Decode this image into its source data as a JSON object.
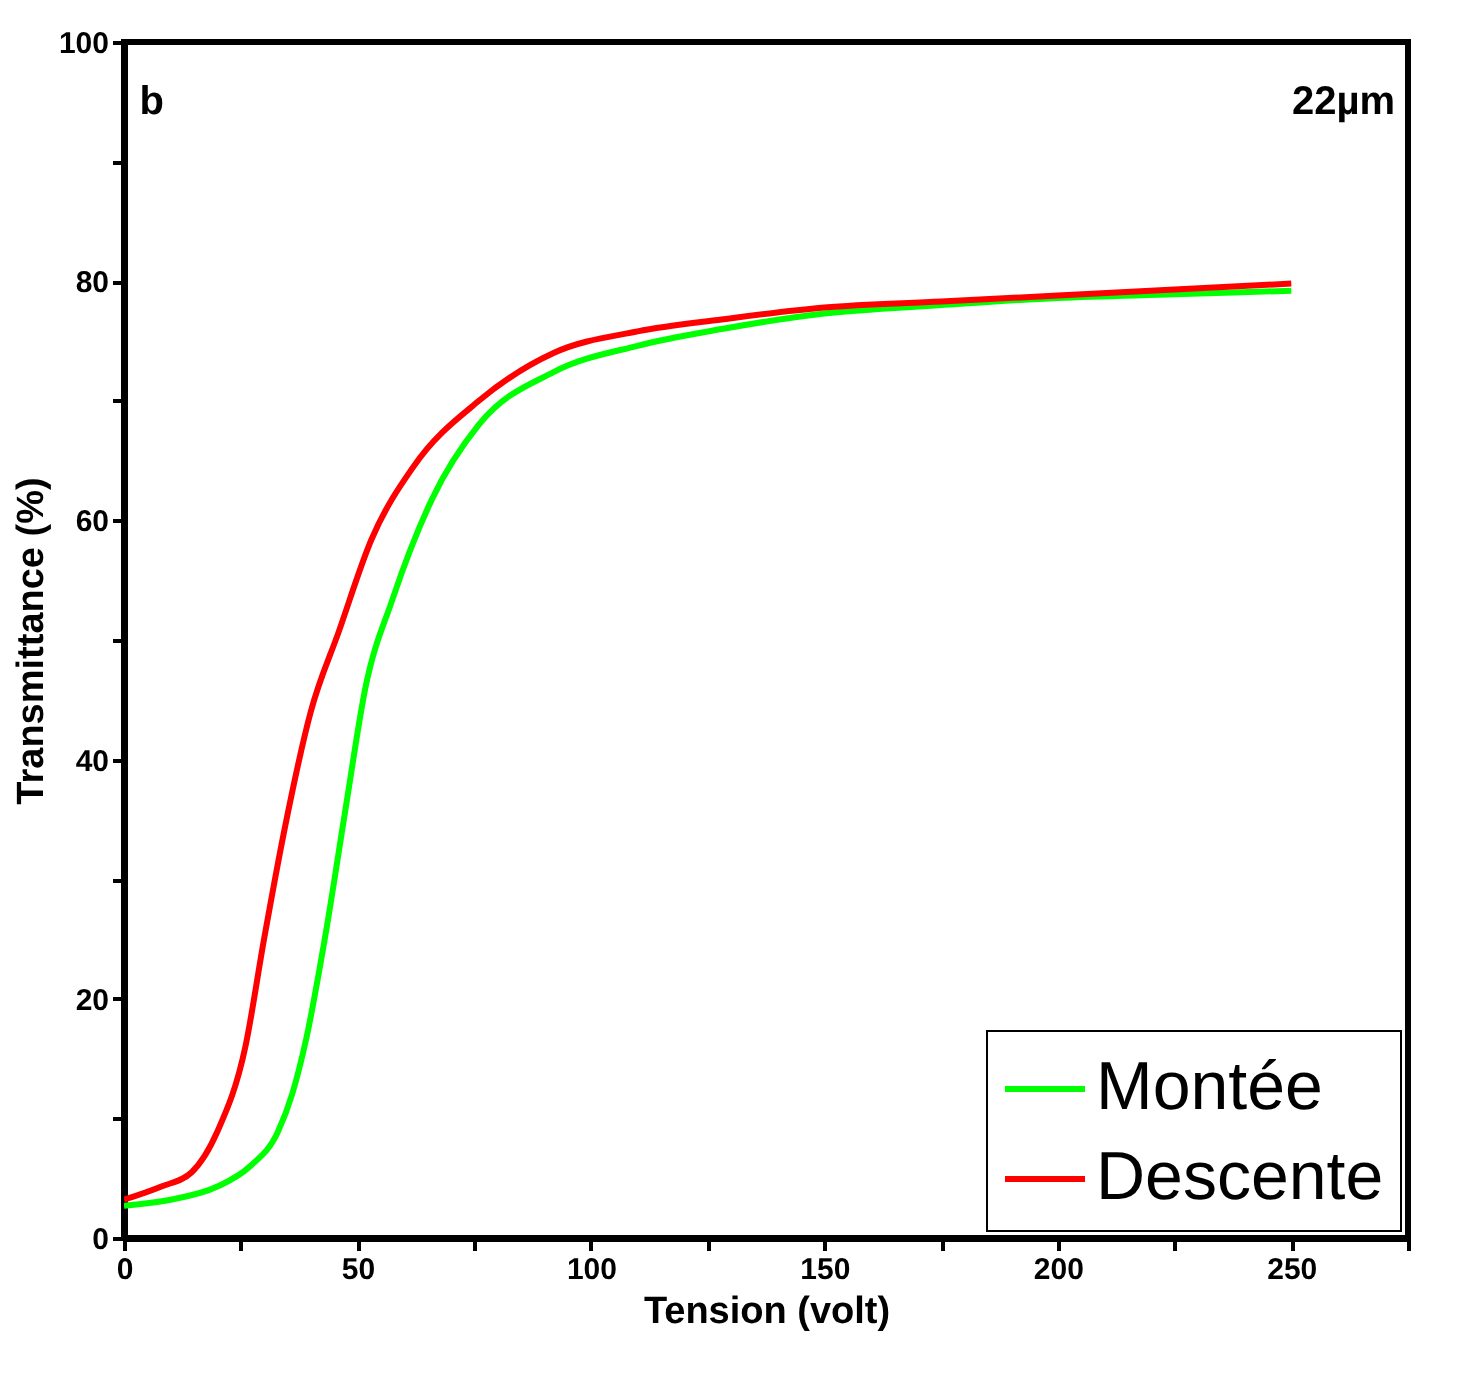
{
  "chart_data": {
    "type": "line",
    "xlabel": "Tension (volt)",
    "ylabel": "Transmittance (%)",
    "annotations": [
      "b",
      "22µm"
    ],
    "xlim": [
      0,
      275
    ],
    "ylim": [
      0,
      100
    ],
    "xticks": [
      0,
      {
        "value": 25,
        "label": null
      },
      50,
      {
        "value": 75,
        "label": null
      },
      100,
      {
        "value": 125,
        "label": null
      },
      150,
      {
        "value": 175,
        "label": null
      },
      200,
      {
        "value": 225,
        "label": null
      },
      250,
      {
        "value": 275,
        "label": null
      }
    ],
    "yticks": [
      0,
      {
        "value": 10,
        "label": null
      },
      20,
      {
        "value": 30,
        "label": null
      },
      40,
      {
        "value": 50,
        "label": null
      },
      60,
      {
        "value": 70,
        "label": null
      },
      80,
      {
        "value": 90,
        "label": null
      },
      100
    ],
    "grid": false,
    "legend": "bottom right",
    "marker": "none",
    "line_style": "solid",
    "series": [
      {
        "name": "Montée",
        "color": "#00ff00",
        "x": [
          0,
          10,
          20,
          27,
          33,
          36,
          39,
          43,
          47.5,
          51.7,
          57.5,
          66,
          76,
          92,
          110,
          128,
          150,
          175,
          200,
          225,
          250
        ],
        "values": [
          2.7,
          3.2,
          4.3,
          6,
          8.9,
          12,
          16.6,
          25,
          36,
          46,
          53.4,
          61.8,
          68,
          72.4,
          74.6,
          76,
          77.3,
          78,
          78.6,
          78.9,
          79.2
        ]
      },
      {
        "name": "Descente",
        "color": "#ff0000",
        "x": [
          0,
          8,
          14.5,
          20,
          26,
          30,
          34.5,
          40,
          46,
          53,
          62,
          76,
          92,
          110,
          128,
          150,
          175,
          200,
          225,
          250
        ],
        "values": [
          3.2,
          4.3,
          5.5,
          8.9,
          16,
          25,
          34.4,
          44,
          50.7,
          58.4,
          64.5,
          70,
          74,
          75.8,
          76.8,
          77.8,
          78.3,
          78.8,
          79.3,
          79.8
        ]
      }
    ]
  }
}
